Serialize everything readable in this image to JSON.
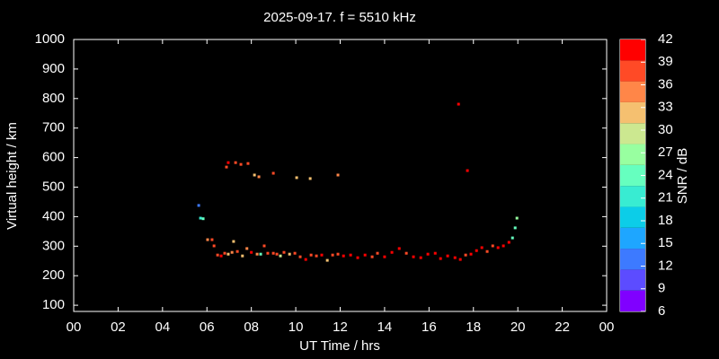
{
  "chart_data": {
    "type": "scatter",
    "title": "2025-09-17. f = 5510 kHz",
    "xlabel": "UT Time / hrs",
    "ylabel": "Virtual height / km",
    "xlim": [
      0,
      24
    ],
    "ylim": [
      79,
      1000
    ],
    "xticks": [
      {
        "value": 0,
        "label": "00"
      },
      {
        "value": 2,
        "label": "02"
      },
      {
        "value": 4,
        "label": "04"
      },
      {
        "value": 6,
        "label": "06"
      },
      {
        "value": 8,
        "label": "08"
      },
      10,
      12,
      14,
      16,
      18,
      20,
      22,
      {
        "value": 24,
        "label": "00"
      }
    ],
    "yticks": [
      100,
      200,
      300,
      400,
      500,
      600,
      700,
      800,
      900,
      1000
    ],
    "x": [
      5.63,
      5.71,
      5.83,
      6.03,
      6.23,
      6.32,
      6.48,
      6.64,
      6.8,
      6.96,
      7.13,
      7.2,
      7.37,
      7.6,
      7.8,
      8.0,
      8.26,
      8.42,
      8.58,
      8.74,
      8.99,
      9.15,
      9.31,
      9.47,
      9.72,
      9.96,
      10.2,
      10.45,
      10.69,
      10.93,
      11.17,
      11.42,
      11.66,
      11.9,
      12.15,
      12.47,
      12.79,
      13.12,
      13.44,
      13.68,
      14.0,
      14.33,
      14.66,
      14.98,
      15.3,
      15.63,
      15.95,
      16.28,
      16.52,
      16.84,
      17.17,
      17.41,
      17.65,
      17.89,
      18.14,
      18.38,
      18.62,
      18.87,
      19.11,
      19.35,
      19.6,
      19.76,
      19.88,
      19.96,
      6.88,
      6.96,
      7.29,
      7.53,
      7.85,
      8.14,
      8.34,
      8.99,
      10.04,
      10.65,
      11.9,
      17.33,
      17.73
    ],
    "values": [
      438,
      395,
      393,
      322,
      322,
      301,
      270,
      267,
      276,
      273,
      279,
      316,
      282,
      267,
      292,
      279,
      273,
      273,
      301,
      276,
      276,
      273,
      267,
      279,
      273,
      276,
      264,
      255,
      270,
      267,
      270,
      252,
      270,
      273,
      267,
      270,
      261,
      270,
      264,
      276,
      264,
      279,
      292,
      276,
      264,
      261,
      273,
      276,
      258,
      267,
      261,
      255,
      270,
      273,
      285,
      295,
      282,
      301,
      295,
      301,
      313,
      328,
      362,
      395,
      568,
      583,
      583,
      577,
      580,
      541,
      535,
      547,
      532,
      529,
      541,
      781,
      556
    ],
    "snr": [
      13,
      20,
      24,
      36,
      38,
      37,
      37,
      40,
      38,
      33,
      36,
      31,
      38,
      33,
      36,
      40,
      34,
      24,
      37,
      38,
      37,
      39,
      30,
      38,
      33,
      38,
      39,
      40,
      38,
      39,
      40,
      33,
      38,
      39,
      40,
      40,
      40,
      40,
      39,
      38,
      40,
      40,
      40,
      39,
      40,
      40,
      40,
      40,
      40,
      40,
      40,
      40,
      39,
      40,
      40,
      40,
      39,
      38,
      40,
      40,
      40,
      24,
      24,
      27,
      39,
      40,
      37,
      38,
      37,
      33,
      34,
      38,
      33,
      31,
      35,
      40,
      40
    ],
    "colorbar": {
      "label": "SNR / dB",
      "clim": [
        6,
        42
      ],
      "ticks": [
        6,
        9,
        12,
        15,
        18,
        21,
        24,
        27,
        30,
        33,
        36,
        39,
        42
      ],
      "colors": [
        "#8000ff",
        "#5c4cff",
        "#3d7aff",
        "#1ea6ff",
        "#0ccde8",
        "#38ecd2",
        "#66ffbf",
        "#98ffa0",
        "#cce890",
        "#f5c070",
        "#ff8648",
        "#ff4a26",
        "#ff0000"
      ]
    }
  }
}
